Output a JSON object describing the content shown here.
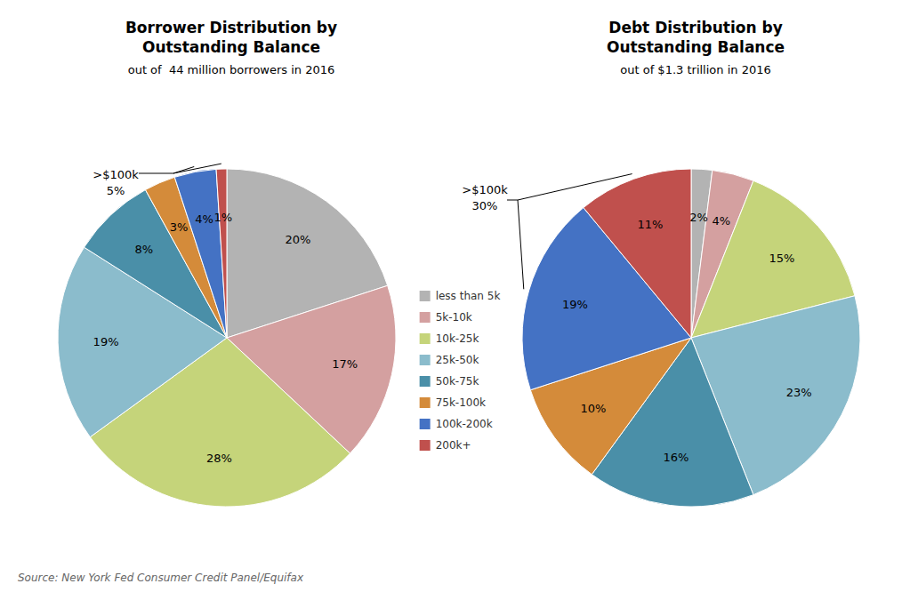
{
  "chart_data": [
    {
      "type": "pie",
      "title": "Borrower Distribution by\nOutstanding Balance",
      "subtitle": "out of  44 million borrowers in 2016",
      "categories": [
        "less than 5k",
        "5k-10k",
        "10k-25k",
        "25k-50k",
        "50k-75k",
        "75k-100k",
        "100k-200k",
        "200k+"
      ],
      "values": [
        20,
        17,
        28,
        19,
        8,
        3,
        4,
        1
      ],
      "value_labels": [
        "20%",
        "17%",
        "28%",
        "19%",
        "8%",
        "3%",
        "4%",
        "1%"
      ],
      "colors": [
        "#b3b3b3",
        "#d4a0a0",
        "#c5d47a",
        "#8bbccc",
        "#4a8fa8",
        "#d48b3a",
        "#4472c4",
        "#c0504d"
      ],
      "data_labels": true,
      "legend": "center",
      "annotation": ">$100k\n5%"
    },
    {
      "type": "pie",
      "title": "Debt Distribution by\nOutstanding Balance",
      "subtitle": "out of $1.3 trillion in 2016",
      "categories": [
        "less than 5k",
        "5k-10k",
        "10k-25k",
        "25k-50k",
        "50k-75k",
        "75k-100k",
        "100k-200k",
        "200k+"
      ],
      "values": [
        2,
        4,
        15,
        23,
        16,
        10,
        19,
        11
      ],
      "value_labels": [
        "2%",
        "4%",
        "15%",
        "23%",
        "16%",
        "10%",
        "19%",
        "11%"
      ],
      "colors": [
        "#b3b3b3",
        "#d4a0a0",
        "#c5d47a",
        "#8bbccc",
        "#4a8fa8",
        "#d48b3a",
        "#4472c4",
        "#c0504d"
      ],
      "data_labels": true,
      "legend": "center",
      "annotation": ">$100k\n30%"
    }
  ],
  "source": "Source: New York Fed Consumer Credit Panel/Equifax"
}
